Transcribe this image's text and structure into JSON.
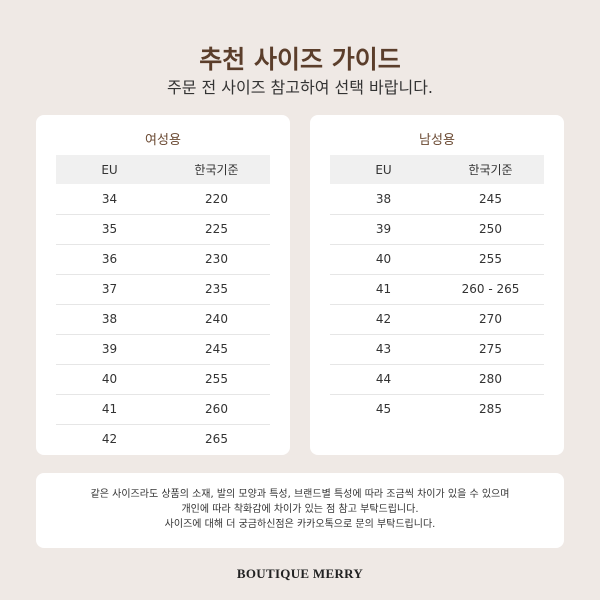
{
  "header": {
    "title": "추천 사이즈 가이드",
    "subtitle": "주문 전 사이즈 참고하여 선택 바랍니다."
  },
  "women": {
    "title": "여성용",
    "columns": [
      "EU",
      "한국기준"
    ],
    "rows": [
      [
        "34",
        "220"
      ],
      [
        "35",
        "225"
      ],
      [
        "36",
        "230"
      ],
      [
        "37",
        "235"
      ],
      [
        "38",
        "240"
      ],
      [
        "39",
        "245"
      ],
      [
        "40",
        "255"
      ],
      [
        "41",
        "260"
      ],
      [
        "42",
        "265"
      ]
    ]
  },
  "men": {
    "title": "남성용",
    "columns": [
      "EU",
      "한국기준"
    ],
    "rows": [
      [
        "38",
        "245"
      ],
      [
        "39",
        "250"
      ],
      [
        "40",
        "255"
      ],
      [
        "41",
        "260 - 265"
      ],
      [
        "42",
        "270"
      ],
      [
        "43",
        "275"
      ],
      [
        "44",
        "280"
      ],
      [
        "45",
        "285"
      ]
    ]
  },
  "note": {
    "lines": [
      "같은 사이즈라도 상품의 소재, 발의 모양과 특성, 브랜드별 특성에 따라 조금씩 차이가 있을 수 있으며",
      "개인에 따라 착화감에 차이가 있는 점 참고 부탁드립니다.",
      "사이즈에 대해 더 궁금하신점은 카카오톡으로 문의 부탁드립니다."
    ]
  },
  "brand": "BOUTIQUE MERRY",
  "colors": {
    "background": "#efe9e5",
    "title": "#5b3e2b",
    "header_row": "#f0f0f0"
  }
}
